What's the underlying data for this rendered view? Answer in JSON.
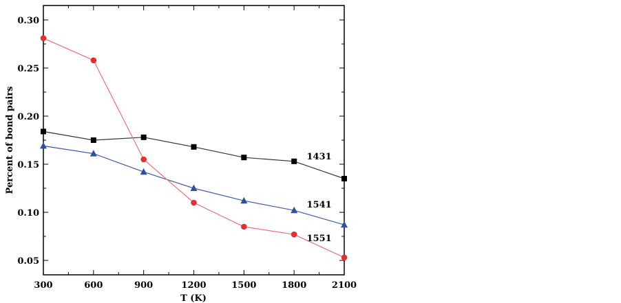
{
  "chart_data": {
    "type": "line",
    "title": "",
    "xlabel": "T (K)",
    "ylabel": "Percent of bond pairs",
    "xlim": [
      300,
      2100
    ],
    "ylim": [
      0.035,
      0.315
    ],
    "xticks": [
      300,
      600,
      900,
      1200,
      1500,
      1800,
      2100
    ],
    "xtick_labels": [
      "300",
      "600",
      "900",
      "1200",
      "1500",
      "1800",
      "2100"
    ],
    "yticks": [
      0.05,
      0.1,
      0.15,
      0.2,
      0.25,
      0.3
    ],
    "ytick_labels": [
      "0.05",
      "0.10",
      "0.15",
      "0.20",
      "0.25",
      "0.30"
    ],
    "grid": false,
    "legend": "none",
    "series": [
      {
        "name": "1431",
        "marker": "square",
        "color": "#000000",
        "line_color": "#333333",
        "x": [
          300,
          600,
          900,
          1200,
          1500,
          1800,
          2100
        ],
        "y": [
          0.184,
          0.175,
          0.178,
          0.168,
          0.157,
          0.153,
          0.135
        ]
      },
      {
        "name": "1541",
        "marker": "triangle",
        "color": "#2f4f9f",
        "line_color": "#3a5aa8",
        "x": [
          300,
          600,
          900,
          1200,
          1500,
          1800,
          2100
        ],
        "y": [
          0.169,
          0.161,
          0.142,
          0.125,
          0.112,
          0.102,
          0.087
        ]
      },
      {
        "name": "1551",
        "marker": "circle",
        "color": "#e03030",
        "line_color": "#f07070",
        "x": [
          300,
          600,
          900,
          1200,
          1500,
          1800,
          2100
        ],
        "y": [
          0.281,
          0.258,
          0.155,
          0.11,
          0.085,
          0.077,
          0.053
        ]
      }
    ]
  }
}
